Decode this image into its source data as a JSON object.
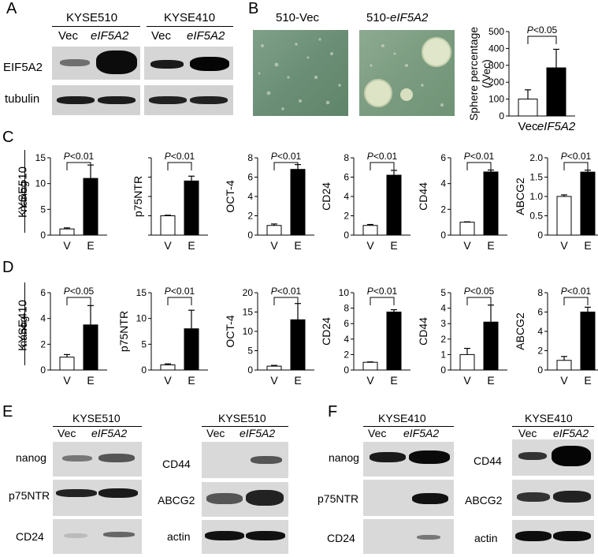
{
  "panels": {
    "A": "A",
    "B": "B",
    "C": "C",
    "D": "D",
    "E": "E",
    "F": "F"
  },
  "panelA": {
    "cell_left": "KYSE510",
    "cell_right": "KYSE410",
    "lane_vec": "Vec",
    "lane_eif": "eIF5A2",
    "row1": "EIF5A2",
    "row2": "tubulin"
  },
  "panelB": {
    "img_left": "510-Vec",
    "img_right": "510-",
    "img_right_it": "eIF5A2",
    "chart_ylabel_1": "Sphere percentage",
    "chart_ylabel_2": "(/Vec)"
  },
  "rowlabels": {
    "C": "KYSE510",
    "D": "KYSE410"
  },
  "panelE": {
    "left_cell": "KYSE510",
    "right_cell": "KYSE510",
    "lane_vec": "Vec",
    "lane_eif": "eIF5A2",
    "left_rows": [
      "nanog",
      "p75NTR",
      "CD24"
    ],
    "right_rows": [
      "CD44",
      "ABCG2",
      "actin"
    ]
  },
  "panelF": {
    "left_cell": "KYSE410",
    "right_cell": "KYSE410",
    "lane_vec": "Vec",
    "lane_eif": "eIF5A2",
    "left_rows": [
      "nanog",
      "p75NTR",
      "CD24"
    ],
    "right_rows": [
      "CD44",
      "ABCG2",
      "actin"
    ]
  },
  "chart_data": [
    {
      "id": "B",
      "type": "bar",
      "categories": [
        "Vec",
        "eIF5A2"
      ],
      "values": [
        100,
        285
      ],
      "errors": [
        55,
        110
      ],
      "ylabel": "Sphere percentage (/Vec)",
      "ylim": [
        0,
        500
      ],
      "yticks": [
        0,
        100,
        200,
        300,
        400,
        500
      ],
      "pval": "P<0.05"
    },
    {
      "id": "C1",
      "type": "bar",
      "categories": [
        "V",
        "E"
      ],
      "values": [
        1.2,
        11
      ],
      "errors": [
        0.2,
        2.6
      ],
      "ylabel": "nanog",
      "ylim": [
        0,
        15
      ],
      "yticks": [
        0,
        5,
        10,
        15
      ],
      "pval": "P<0.01"
    },
    {
      "id": "C2",
      "type": "bar",
      "categories": [
        "V",
        "E"
      ],
      "values": [
        1.0,
        2.8
      ],
      "errors": [
        0.03,
        0.25
      ],
      "ylabel": "p75NTR",
      "ylim": [
        0,
        4
      ],
      "yticks": [],
      "pval": "P<0.01"
    },
    {
      "id": "C3",
      "type": "bar",
      "categories": [
        "V",
        "E"
      ],
      "values": [
        1.0,
        6.8
      ],
      "errors": [
        0.15,
        0.5
      ],
      "ylabel": "OCT-4",
      "ylim": [
        0,
        8
      ],
      "yticks": [
        0,
        2,
        4,
        6,
        8
      ],
      "pval": "P<0.01"
    },
    {
      "id": "C4",
      "type": "bar",
      "categories": [
        "V",
        "E"
      ],
      "values": [
        1.0,
        6.2
      ],
      "errors": [
        0.1,
        0.5
      ],
      "ylabel": "CD24",
      "ylim": [
        0,
        8
      ],
      "yticks": [
        0,
        2,
        4,
        6,
        8
      ],
      "pval": "P<0.01"
    },
    {
      "id": "C5",
      "type": "bar",
      "categories": [
        "V",
        "E"
      ],
      "values": [
        1.0,
        4.9
      ],
      "errors": [
        0.03,
        0.15
      ],
      "ylabel": "CD44",
      "ylim": [
        0,
        6
      ],
      "yticks": [
        0,
        2,
        4,
        6
      ],
      "pval": "P<0.01"
    },
    {
      "id": "C6",
      "type": "bar",
      "categories": [
        "V",
        "E"
      ],
      "values": [
        1.0,
        1.63
      ],
      "errors": [
        0.04,
        0.05
      ],
      "ylabel": "ABCG2",
      "ylim": [
        0,
        2.0
      ],
      "yticks": [
        "0",
        "0.5",
        "1.0",
        "1.5",
        "2.0"
      ],
      "pval": "P<0.01"
    },
    {
      "id": "D1",
      "type": "bar",
      "categories": [
        "V",
        "E"
      ],
      "values": [
        1.0,
        3.5
      ],
      "errors": [
        0.2,
        1.5
      ],
      "ylabel": "nanog",
      "ylim": [
        0,
        6
      ],
      "yticks": [
        0,
        2,
        4,
        6
      ],
      "pval": "P<0.05"
    },
    {
      "id": "D2",
      "type": "bar",
      "categories": [
        "V",
        "E"
      ],
      "values": [
        1.0,
        8.0
      ],
      "errors": [
        0.2,
        3.6
      ],
      "ylabel": "p75NTR",
      "ylim": [
        0,
        15
      ],
      "yticks": [
        0,
        5,
        10,
        15
      ],
      "pval": "P<0.01"
    },
    {
      "id": "D3",
      "type": "bar",
      "categories": [
        "V",
        "E"
      ],
      "values": [
        1.0,
        13
      ],
      "errors": [
        0.2,
        4.2
      ],
      "ylabel": "OCT-4",
      "ylim": [
        0,
        20
      ],
      "yticks": [
        0,
        5,
        10,
        15,
        20
      ],
      "pval": "P<0.01"
    },
    {
      "id": "D4",
      "type": "bar",
      "categories": [
        "V",
        "E"
      ],
      "values": [
        1.0,
        7.5
      ],
      "errors": [
        0.05,
        0.3
      ],
      "ylabel": "CD24",
      "ylim": [
        0,
        10
      ],
      "yticks": [
        0,
        2,
        4,
        6,
        8,
        10
      ],
      "pval": "P<0.01"
    },
    {
      "id": "D5",
      "type": "bar",
      "categories": [
        "V",
        "E"
      ],
      "values": [
        1.0,
        3.1
      ],
      "errors": [
        0.4,
        1.1
      ],
      "ylabel": "CD44",
      "ylim": [
        0,
        5
      ],
      "yticks": [
        0,
        1,
        2,
        3,
        4,
        5
      ],
      "pval": "P<0.05"
    },
    {
      "id": "D6",
      "type": "bar",
      "categories": [
        "V",
        "E"
      ],
      "values": [
        1.0,
        6.0
      ],
      "errors": [
        0.4,
        0.5
      ],
      "ylabel": "ABCG2",
      "ylim": [
        0,
        8
      ],
      "yticks": [
        0,
        2,
        4,
        6,
        8
      ],
      "pval": "P<0.01"
    }
  ]
}
